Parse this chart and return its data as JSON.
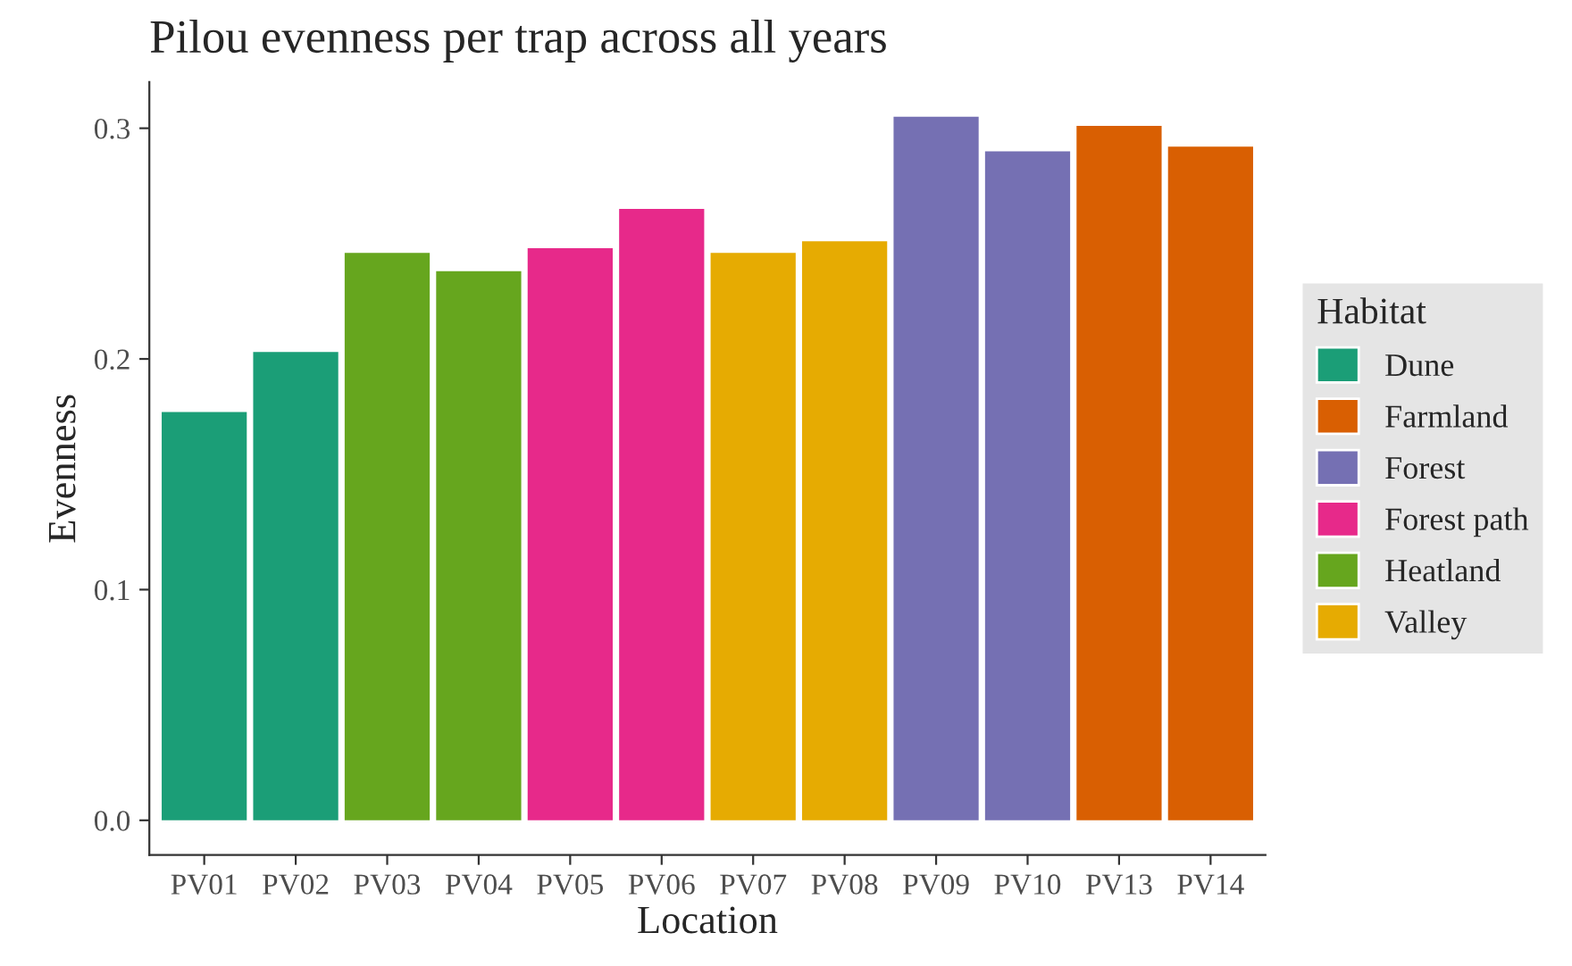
{
  "chart_data": {
    "type": "bar",
    "title": "Pilou evenness per trap across all years",
    "xlabel": "Location",
    "ylabel": "Evenness",
    "legend_title": "Habitat",
    "categories": [
      "PV01",
      "PV02",
      "PV03",
      "PV04",
      "PV05",
      "PV06",
      "PV07",
      "PV08",
      "PV09",
      "PV10",
      "PV13",
      "PV14"
    ],
    "series": [
      {
        "name": "Dune",
        "color": "#1b9e77",
        "values": [
          0.177,
          0.203,
          null,
          null,
          null,
          null,
          null,
          null,
          null,
          null,
          null,
          null
        ]
      },
      {
        "name": "Farmland",
        "color": "#d95f02",
        "values": [
          null,
          null,
          null,
          null,
          null,
          null,
          null,
          null,
          null,
          null,
          0.301,
          0.292
        ]
      },
      {
        "name": "Forest",
        "color": "#7570b3",
        "values": [
          null,
          null,
          null,
          null,
          null,
          null,
          null,
          null,
          0.305,
          0.29,
          null,
          null
        ]
      },
      {
        "name": "Forest path",
        "color": "#e7298a",
        "values": [
          null,
          null,
          null,
          null,
          0.248,
          0.265,
          null,
          null,
          null,
          null,
          null,
          null
        ]
      },
      {
        "name": "Heatland",
        "color": "#66a61e",
        "values": [
          null,
          null,
          0.246,
          0.238,
          null,
          null,
          null,
          null,
          null,
          null,
          null,
          null
        ]
      },
      {
        "name": "Valley",
        "color": "#e6ab02",
        "values": [
          null,
          null,
          null,
          null,
          null,
          null,
          0.246,
          0.251,
          null,
          null,
          null,
          null
        ]
      }
    ],
    "ylim": [
      -0.015,
      0.32
    ],
    "yticks": [
      {
        "value": 0,
        "label": "0.0"
      },
      0.1,
      0.2,
      0.3
    ],
    "grid": false,
    "legend": "right"
  }
}
